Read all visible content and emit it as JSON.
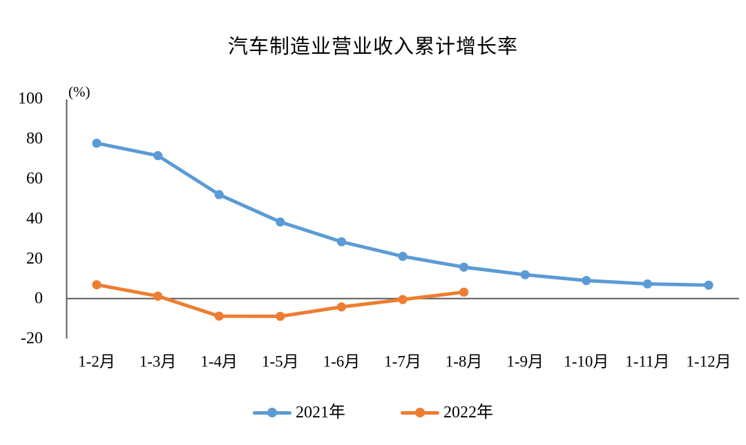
{
  "chart_data": {
    "type": "line",
    "title": "汽车制造业营业收入累计增长率",
    "unit_label": "(%)",
    "categories": [
      "1-2月",
      "1-3月",
      "1-4月",
      "1-5月",
      "1-6月",
      "1-7月",
      "1-8月",
      "1-9月",
      "1-10月",
      "1-11月",
      "1-12月"
    ],
    "series": [
      {
        "name": "2021年",
        "color": "#5B9BD5",
        "values": [
          77.7,
          71.5,
          52.0,
          38.3,
          28.4,
          21.1,
          15.7,
          11.9,
          9.0,
          7.3,
          6.7
        ]
      },
      {
        "name": "2022年",
        "color": "#ED7D31",
        "values": [
          6.9,
          1.2,
          -8.8,
          -8.9,
          -4.2,
          -0.5,
          3.2
        ]
      }
    ],
    "yticks": [
      100,
      80,
      60,
      40,
      20,
      0,
      -20
    ],
    "ylim": [
      -20,
      100
    ],
    "grid": false,
    "legend_position": "bottom",
    "axis_color": "#595959",
    "text_color": "#000000"
  }
}
